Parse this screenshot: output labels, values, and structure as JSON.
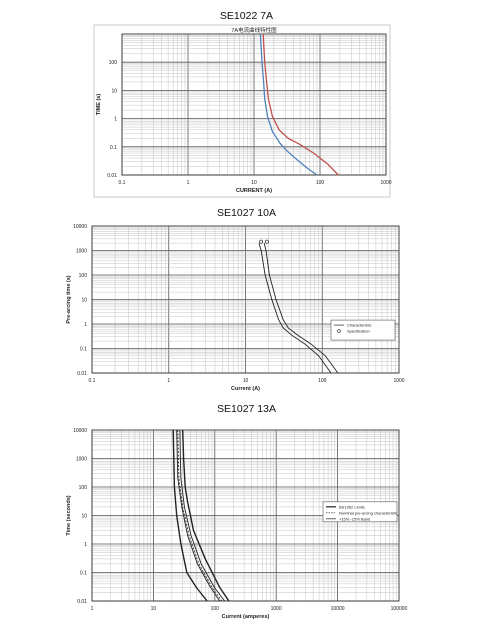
{
  "headings": [
    "SE1022    7A",
    "SE1027    10A",
    "SE1027    13A"
  ],
  "chart_data": [
    {
      "type": "line",
      "title": "7A电流曲线特性图",
      "xlabel": "CURRENT (A)",
      "ylabel": "TIME (s)",
      "xscale": "log",
      "yscale": "log",
      "xlim": [
        0.1,
        1000
      ],
      "ylim": [
        0.01,
        1000
      ],
      "xticks": [
        "0.1",
        "1",
        "10",
        "100",
        "1000"
      ],
      "yticks": [
        "0.01",
        "0.1",
        "1",
        "10",
        "100"
      ],
      "grid": true,
      "colors": {
        "series1": "#4f81bd",
        "series2": "#c0504d"
      },
      "series": [
        {
          "x": [
            12.5,
            13.2,
            14,
            14.5,
            16,
            19,
            25,
            32,
            45,
            65,
            90
          ],
          "y": [
            1000,
            100,
            20,
            5,
            1.2,
            0.35,
            0.13,
            0.07,
            0.035,
            0.017,
            0.01
          ]
        },
        {
          "x": [
            13.8,
            14.5,
            15.5,
            16.5,
            19,
            24,
            33,
            50,
            80,
            130,
            190
          ],
          "y": [
            1000,
            100,
            20,
            5,
            1.2,
            0.4,
            0.2,
            0.12,
            0.06,
            0.025,
            0.01
          ]
        }
      ]
    },
    {
      "type": "line",
      "xlabel": "Current (A)",
      "ylabel": "Pre-arcing time (s)",
      "xscale": "log",
      "yscale": "log",
      "xlim": [
        0.1,
        1000
      ],
      "ylim": [
        0.01,
        10000
      ],
      "xticks": [
        "0.1",
        "1",
        "10",
        "100",
        "1000"
      ],
      "yticks": [
        "0.01",
        "0.1",
        "1",
        "10",
        "100",
        "1000",
        "10000"
      ],
      "grid": true,
      "legend": {
        "placement": "right",
        "entries": [
          "Characteristic",
          "Specification"
        ]
      },
      "series": [
        {
          "name": "Characteristic",
          "x": [
            15,
            16,
            18,
            22,
            27,
            31,
            40,
            60,
            90,
            130
          ],
          "y": [
            2000,
            1000,
            100,
            10,
            1.5,
            0.7,
            0.35,
            0.15,
            0.05,
            0.01
          ]
        },
        {
          "name": "Characteristic",
          "x": [
            17.5,
            18.5,
            20.5,
            25,
            31,
            36,
            48,
            72,
            110,
            160
          ],
          "y": [
            2000,
            1000,
            100,
            10,
            1.5,
            0.7,
            0.35,
            0.15,
            0.05,
            0.01
          ]
        },
        {
          "name": "Specification",
          "x": [
            16,
            19
          ],
          "y": [
            2300,
            2300
          ]
        }
      ]
    },
    {
      "type": "line",
      "xlabel": "Current (amperes)",
      "ylabel": "Time (seconds)",
      "xscale": "log",
      "yscale": "log",
      "xlim": [
        1,
        100000
      ],
      "ylim": [
        0.01,
        10000
      ],
      "xticks": [
        "1",
        "10",
        "100",
        "1000",
        "10000",
        "100000"
      ],
      "yticks": [
        "0.01",
        "0.1",
        "1",
        "10",
        "100",
        "1000",
        "10000"
      ],
      "grid": true,
      "legend": {
        "placement": "right",
        "entries": [
          "BS1362 Limits",
          "Nominal pre-arcing characteristic",
          "+15% -15% Band"
        ]
      },
      "series": [
        {
          "name": "BS1362 Limits",
          "style": "solid",
          "x": [
            21,
            21.5,
            22,
            24,
            28,
            35,
            50,
            75
          ],
          "y": [
            10000,
            1000,
            100,
            10,
            1,
            0.1,
            0.03,
            0.01
          ]
        },
        {
          "name": "BS1362 Limits",
          "style": "solid",
          "x": [
            30,
            31,
            33,
            36,
            45,
            70,
            120,
            170
          ],
          "y": [
            10000,
            1000,
            100,
            30,
            3,
            0.3,
            0.03,
            0.01
          ]
        },
        {
          "name": "Nominal pre-arcing characteristic",
          "style": "dotted",
          "x": [
            25,
            25.5,
            26,
            30,
            38,
            55,
            90,
            130
          ],
          "y": [
            10000,
            1000,
            200,
            20,
            2,
            0.2,
            0.03,
            0.01
          ]
        },
        {
          "name": "+15% -15% Band",
          "style": "solid",
          "x": [
            24,
            24.5,
            25,
            29,
            36,
            52,
            85,
            120
          ],
          "y": [
            10000,
            1000,
            200,
            20,
            2,
            0.2,
            0.03,
            0.01
          ]
        },
        {
          "name": "+15% -15% Band",
          "style": "solid",
          "x": [
            27,
            27.5,
            28,
            32,
            41,
            60,
            98,
            145
          ],
          "y": [
            10000,
            1000,
            200,
            20,
            2,
            0.2,
            0.03,
            0.01
          ]
        }
      ]
    }
  ]
}
